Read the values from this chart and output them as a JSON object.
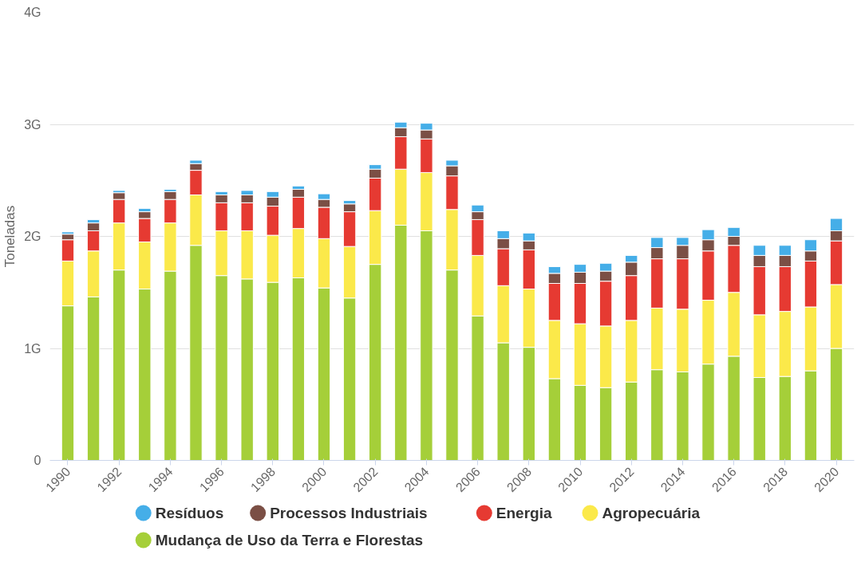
{
  "chart_data": {
    "type": "bar",
    "stacked": true,
    "ylabel": "Toneladas",
    "categories": [
      "1990",
      null,
      "1992",
      null,
      "1994",
      null,
      "1996",
      null,
      "1998",
      null,
      "2000",
      null,
      "2002",
      null,
      "2004",
      null,
      "2006",
      null,
      "2008",
      null,
      "2010",
      null,
      "2012",
      null,
      "2014",
      null,
      "2016",
      null,
      "2018",
      null,
      "2020"
    ],
    "series": [
      {
        "name": "Mudança de Uso da Terra e Florestas",
        "color": "#a5cf39",
        "values": [
          1.38,
          1.46,
          1.7,
          1.53,
          1.69,
          1.92,
          1.65,
          1.62,
          1.59,
          1.63,
          1.54,
          1.45,
          1.75,
          2.1,
          2.05,
          1.7,
          1.29,
          1.05,
          1.01,
          0.73,
          0.67,
          0.65,
          0.7,
          0.81,
          0.79,
          0.86,
          0.93,
          0.74,
          0.75,
          0.8,
          1.0
        ]
      },
      {
        "name": "Agropecuária",
        "color": "#fbe94a",
        "values": [
          0.4,
          0.41,
          0.42,
          0.42,
          0.43,
          0.45,
          0.4,
          0.43,
          0.42,
          0.44,
          0.44,
          0.46,
          0.48,
          0.5,
          0.52,
          0.54,
          0.54,
          0.51,
          0.52,
          0.52,
          0.55,
          0.55,
          0.55,
          0.55,
          0.56,
          0.57,
          0.57,
          0.56,
          0.58,
          0.57,
          0.57
        ]
      },
      {
        "name": "Energia",
        "color": "#e63a32",
        "values": [
          0.19,
          0.18,
          0.21,
          0.21,
          0.21,
          0.22,
          0.25,
          0.25,
          0.26,
          0.28,
          0.28,
          0.31,
          0.29,
          0.29,
          0.3,
          0.3,
          0.32,
          0.33,
          0.35,
          0.33,
          0.36,
          0.4,
          0.4,
          0.44,
          0.45,
          0.44,
          0.42,
          0.43,
          0.4,
          0.41,
          0.39
        ]
      },
      {
        "name": "Processos Industriais",
        "color": "#7b4f45",
        "values": [
          0.05,
          0.07,
          0.06,
          0.06,
          0.07,
          0.06,
          0.07,
          0.07,
          0.08,
          0.07,
          0.07,
          0.07,
          0.08,
          0.08,
          0.08,
          0.09,
          0.07,
          0.09,
          0.08,
          0.09,
          0.1,
          0.09,
          0.12,
          0.1,
          0.12,
          0.1,
          0.08,
          0.1,
          0.1,
          0.09,
          0.09
        ]
      },
      {
        "name": "Resíduos",
        "color": "#45aee8",
        "values": [
          0.02,
          0.03,
          0.02,
          0.03,
          0.02,
          0.03,
          0.03,
          0.04,
          0.05,
          0.03,
          0.05,
          0.03,
          0.04,
          0.05,
          0.06,
          0.05,
          0.06,
          0.07,
          0.07,
          0.06,
          0.07,
          0.07,
          0.06,
          0.09,
          0.07,
          0.09,
          0.08,
          0.09,
          0.09,
          0.1,
          0.11
        ]
      }
    ],
    "ylim": [
      0,
      4
    ],
    "yticks": [
      0,
      {
        "value": 1,
        "label": "1G"
      },
      {
        "value": 2,
        "label": "2G"
      },
      {
        "value": 3,
        "label": "3G"
      },
      {
        "value": 4,
        "label": "4G"
      }
    ],
    "grid": "y",
    "legend": "bottom"
  }
}
